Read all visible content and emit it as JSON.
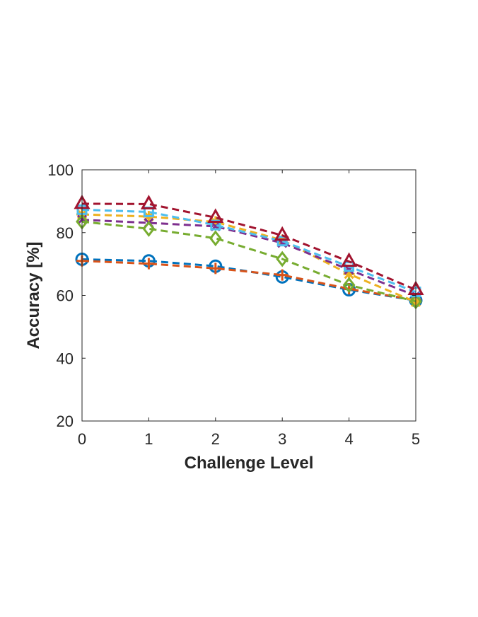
{
  "chart_data": {
    "type": "line",
    "title": "",
    "xlabel": "Challenge Level",
    "ylabel": "Accuracy [%]",
    "x": [
      0,
      1,
      2,
      3,
      4,
      5
    ],
    "xlim": [
      0,
      5
    ],
    "ylim": [
      20,
      100
    ],
    "xticks": [
      "0",
      "1",
      "2",
      "3",
      "4",
      "5"
    ],
    "yticks": [
      "20",
      "40",
      "60",
      "80",
      "100"
    ],
    "grid": false,
    "line_style": "dashed",
    "series": [
      {
        "color": "#0072BD",
        "marker": "circle",
        "values": [
          71.5,
          71.0,
          69.3,
          65.9,
          61.8,
          58.4
        ]
      },
      {
        "color": "#D95319",
        "marker": "plus",
        "values": [
          71.0,
          70.1,
          68.6,
          66.5,
          62.1,
          58.5
        ]
      },
      {
        "color": "#EDB120",
        "marker": "star",
        "values": [
          85.8,
          85.1,
          83.4,
          77.6,
          66.8,
          57.9
        ]
      },
      {
        "color": "#7E2F8E",
        "marker": "x",
        "values": [
          84.1,
          83.1,
          82.0,
          76.7,
          68.2,
          59.9
        ]
      },
      {
        "color": "#77AC30",
        "marker": "diamond",
        "values": [
          83.5,
          81.2,
          78.2,
          71.6,
          63.3,
          58.1
        ]
      },
      {
        "color": "#4DBEEE",
        "marker": "square",
        "values": [
          87.3,
          86.6,
          82.4,
          77.3,
          69.2,
          61.1
        ]
      },
      {
        "color": "#A2142F",
        "marker": "triangle",
        "values": [
          89.2,
          89.1,
          84.8,
          79.1,
          70.8,
          61.8
        ]
      }
    ]
  }
}
